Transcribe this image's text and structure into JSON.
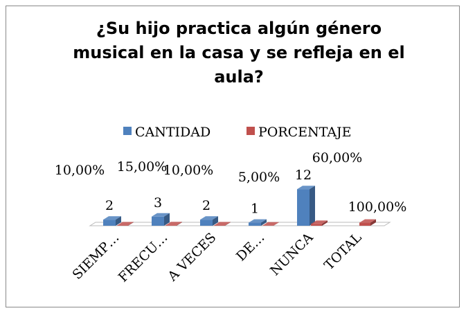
{
  "chart_data": {
    "type": "bar3d",
    "title": "¿Su hijo practica algún género musical en la casa y se refleja en el aula?",
    "categories": [
      "SIEMP…",
      "FRECU…",
      "A VECES",
      "DE…",
      "NUNCA",
      "TOTAL"
    ],
    "series": [
      {
        "name": "CANTIDAD",
        "color": "#4f81bd",
        "values": [
          2,
          3,
          2,
          1,
          12,
          null
        ]
      },
      {
        "name": "PORCENTAJE",
        "color": "#c0504d",
        "values": [
          0.1,
          0.15,
          0.1,
          0.05,
          0.6,
          1
        ],
        "value_labels": [
          "10,00%",
          "15,00%",
          "10,00%",
          "5,00%",
          "60,00%",
          "100,00%"
        ]
      }
    ],
    "ylim": [
      0,
      20
    ],
    "legend": "top"
  }
}
